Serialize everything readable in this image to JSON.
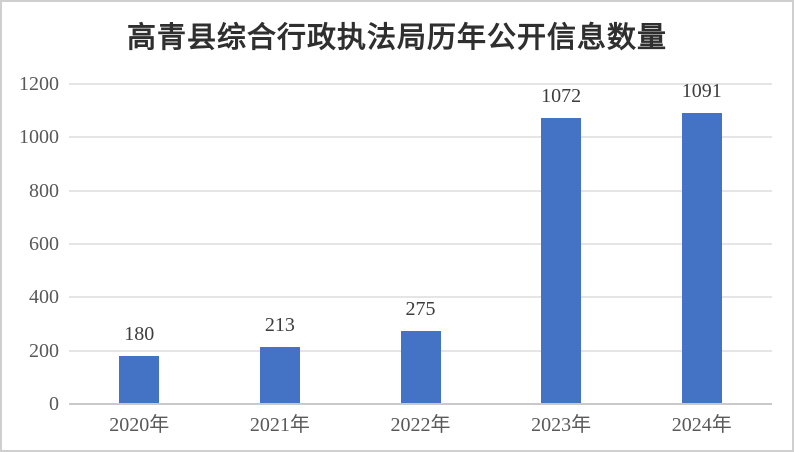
{
  "chart_data": {
    "type": "bar",
    "title": "高青县综合行政执法局历年公开信息数量",
    "categories": [
      "2020年",
      "2021年",
      "2022年",
      "2023年",
      "2024年"
    ],
    "values": [
      180,
      213,
      275,
      1072,
      1091
    ],
    "data_labels": [
      "180",
      "213",
      "275",
      "1072",
      "1091"
    ],
    "yticks": [
      0,
      200,
      400,
      600,
      800,
      1000,
      1200
    ],
    "ytick_labels": [
      "0",
      "200",
      "400",
      "600",
      "800",
      "1000",
      "1200"
    ],
    "ylim": [
      0,
      1200
    ],
    "xlabel": "",
    "ylabel": "",
    "grid": true,
    "legend": "none",
    "colors": {
      "bar": "#4472c4",
      "gridline": "#e5e5e5",
      "axis_line": "#c9c9c9",
      "title_text": "#2f2f2f",
      "tick_text": "#595959",
      "data_label_text": "#3d3d3d",
      "background": "#ffffff",
      "frame_border": "#cfcfcf"
    }
  }
}
